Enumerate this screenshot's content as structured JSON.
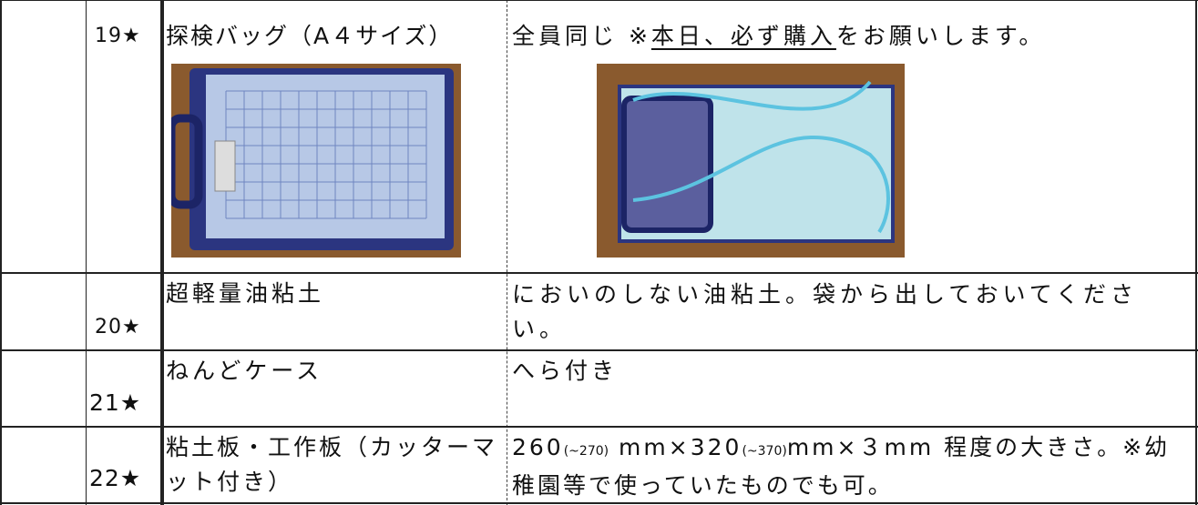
{
  "table": {
    "rows": [
      {
        "number": "19★",
        "item": "探検バッグ（A４サイズ）",
        "description": [
          "全員同じ ※",
          "本日、必ず購入",
          "をお願いします。"
        ]
      },
      {
        "number": "20★",
        "item": "超軽量油粘土",
        "description": [
          "においのしない油粘土。袋から出しておいてください。"
        ]
      },
      {
        "number": "21★",
        "item": "ねんどケース",
        "description": [
          "へら付き"
        ]
      },
      {
        "number": "22★",
        "item": "粘土板・工作板（カッターマット付き）",
        "description": [
          "260",
          "(~270)",
          " mm×320",
          "(~370)",
          "mm×３mm 程度の大きさ。※幼稚園等で使っていたものでも可。"
        ]
      }
    ]
  }
}
